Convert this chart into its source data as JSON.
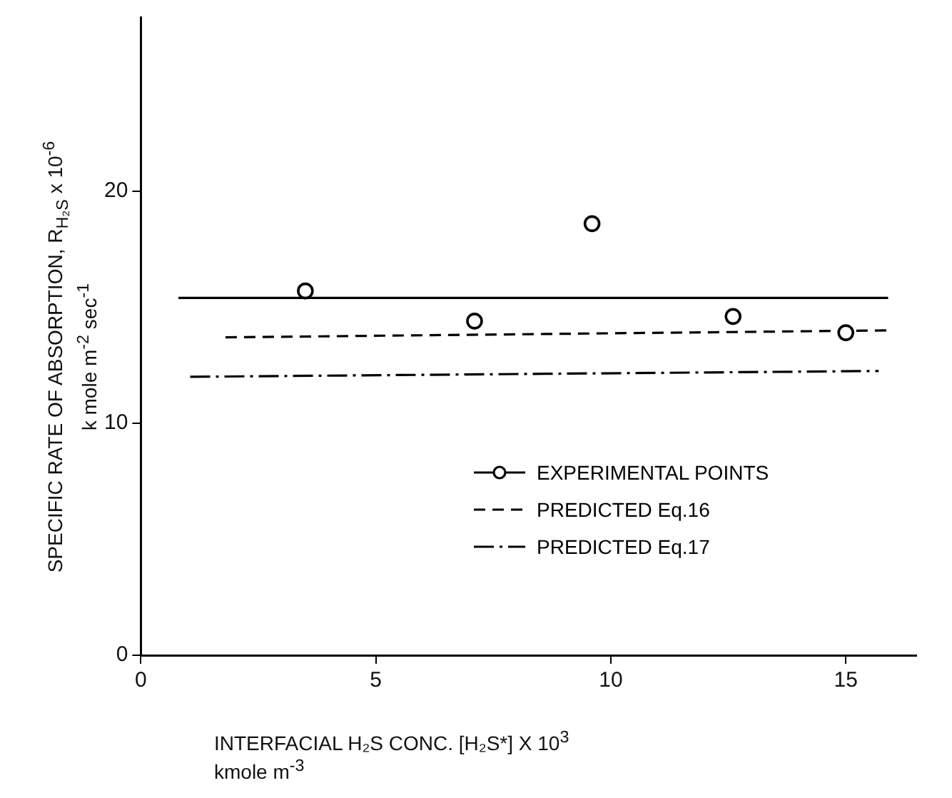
{
  "chart_data": {
    "type": "scatter",
    "xlabel": "INTERFACIAL H₂S CONC. [H₂S*] X 10$^{3}$\nkmole m$^{-3}$",
    "ylabel": "SPECIFIC RATE OF ABSORPTION, R$_{H₂S}$ x 10$^{-6}$\nk mole m$^{-2}$ sec$^{-1}$",
    "xlim": [
      0,
      16.5
    ],
    "ylim": [
      0,
      27.5
    ],
    "xticks": [
      0,
      5,
      10,
      15
    ],
    "yticks": [
      0,
      10,
      20
    ],
    "grid": false,
    "legend": "bottom right",
    "marker": "circle",
    "series": [
      {
        "name": "EXPERIMENTAL POINTS",
        "type": "scatter",
        "color": "#000000",
        "x": [
          3.5,
          7.1,
          9.6,
          12.6,
          15.0
        ],
        "values": [
          15.7,
          14.4,
          18.6,
          14.6,
          13.9
        ]
      },
      {
        "type": "line",
        "color": "#000000",
        "marker": "none",
        "line_style": "solid",
        "x": [
          0.8,
          15.9
        ],
        "values": [
          15.4,
          15.4
        ]
      },
      {
        "name": "PREDICTED Eq.16",
        "type": "line",
        "color": "#000000",
        "marker": "none",
        "line_style": "dashed",
        "x": [
          1.8,
          15.9
        ],
        "values": [
          13.7,
          14.0
        ]
      },
      {
        "name": "PREDICTED Eq.17",
        "type": "line",
        "color": "#000000",
        "marker": "none",
        "line_style": "dashdot",
        "x": [
          1.05,
          15.7
        ],
        "values": [
          12.0,
          12.25
        ]
      }
    ]
  }
}
